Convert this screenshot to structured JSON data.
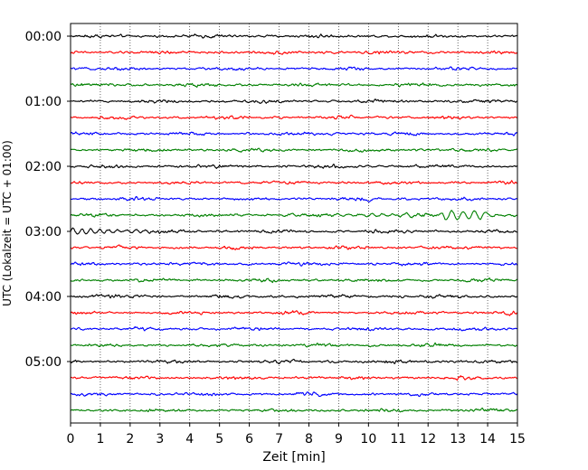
{
  "chart_data": {
    "type": "line",
    "title": "",
    "xlabel": "Zeit  [min]",
    "ylabel": "UTC (Lokalzeit = UTC + 01:00)",
    "xlim": [
      0,
      15
    ],
    "x_ticks": [
      0,
      1,
      2,
      3,
      4,
      5,
      6,
      7,
      8,
      9,
      10,
      11,
      12,
      13,
      14,
      15
    ],
    "y_tick_labels": [
      "00:00",
      "01:00",
      "02:00",
      "03:00",
      "04:00",
      "05:00"
    ],
    "rows_per_hour": 4,
    "minutes_per_row": 15,
    "grid": "vertical dotted",
    "trace_colors": [
      "#000000",
      "#ff0000",
      "#0000ff",
      "#008000"
    ],
    "rows": [
      {
        "start": "00:00",
        "color": "#000000",
        "amplitude": 1
      },
      {
        "start": "00:15",
        "color": "#ff0000",
        "amplitude": 1
      },
      {
        "start": "00:30",
        "color": "#0000ff",
        "amplitude": 1
      },
      {
        "start": "00:45",
        "color": "#008000",
        "amplitude": 1
      },
      {
        "start": "01:00",
        "color": "#000000",
        "amplitude": 1
      },
      {
        "start": "01:15",
        "color": "#ff0000",
        "amplitude": 1
      },
      {
        "start": "01:30",
        "color": "#0000ff",
        "amplitude": 1
      },
      {
        "start": "01:45",
        "color": "#008000",
        "amplitude": 1
      },
      {
        "start": "02:00",
        "color": "#000000",
        "amplitude": 1
      },
      {
        "start": "02:15",
        "color": "#ff0000",
        "amplitude": 1
      },
      {
        "start": "02:30",
        "color": "#0000ff",
        "amplitude": 1
      },
      {
        "start": "02:45",
        "color": "#008000",
        "amplitude": 1,
        "event": true
      },
      {
        "start": "03:00",
        "color": "#000000",
        "amplitude": 1,
        "event_tail": true
      },
      {
        "start": "03:15",
        "color": "#ff0000",
        "amplitude": 1
      },
      {
        "start": "03:30",
        "color": "#0000ff",
        "amplitude": 1
      },
      {
        "start": "03:45",
        "color": "#008000",
        "amplitude": 1
      },
      {
        "start": "04:00",
        "color": "#000000",
        "amplitude": 1
      },
      {
        "start": "04:15",
        "color": "#ff0000",
        "amplitude": 1
      },
      {
        "start": "04:30",
        "color": "#0000ff",
        "amplitude": 1
      },
      {
        "start": "04:45",
        "color": "#008000",
        "amplitude": 1
      },
      {
        "start": "05:00",
        "color": "#000000",
        "amplitude": 1
      },
      {
        "start": "05:15",
        "color": "#ff0000",
        "amplitude": 1
      },
      {
        "start": "05:30",
        "color": "#0000ff",
        "amplitude": 1
      },
      {
        "start": "05:45",
        "color": "#008000",
        "amplitude": 1
      }
    ]
  }
}
